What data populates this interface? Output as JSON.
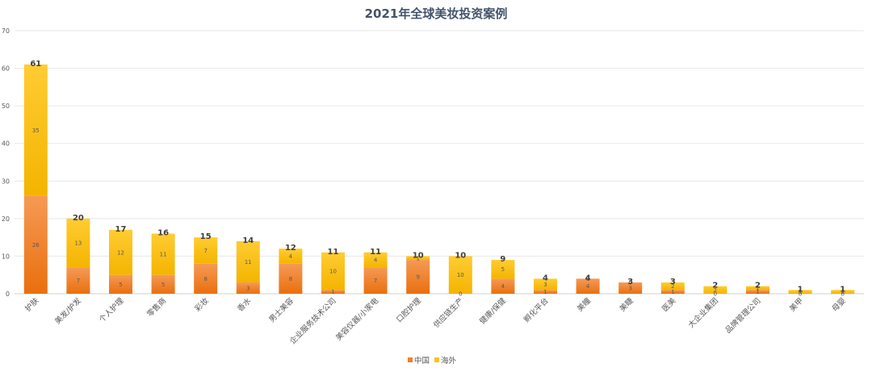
{
  "chart_data": {
    "type": "bar",
    "stacked": true,
    "title": "2021年全球美妆投资案例",
    "xlabel": "",
    "ylabel": "",
    "ylim": [
      0,
      70
    ],
    "yticks": [
      0,
      10,
      20,
      30,
      40,
      50,
      60,
      70
    ],
    "grid": true,
    "legend": "bottom",
    "categories": [
      "护肤",
      "美发/护发",
      "个人护理",
      "零售商",
      "彩妆",
      "香水",
      "男士美容",
      "企业服务技术公司",
      "美容仪器/小家电",
      "口腔护理",
      "供应链生产",
      "健康/保健",
      "孵化平台",
      "美瞳",
      "美睫",
      "医美",
      "大企业集团",
      "品牌管理公司",
      "美甲",
      "母婴"
    ],
    "series": [
      {
        "name": "中国",
        "color": "#f07f2a",
        "values": [
          26,
          7,
          5,
          5,
          8,
          3,
          8,
          1,
          7,
          9,
          0,
          4,
          1,
          4,
          3,
          1,
          0,
          1,
          0,
          0
        ]
      },
      {
        "name": "海外",
        "color": "#fcc21a",
        "values": [
          35,
          13,
          12,
          11,
          7,
          11,
          4,
          10,
          4,
          1,
          10,
          5,
          3,
          0,
          0,
          2,
          2,
          1,
          1,
          1
        ]
      }
    ],
    "totals": [
      61,
      20,
      17,
      16,
      15,
      14,
      12,
      11,
      11,
      10,
      10,
      9,
      4,
      4,
      3,
      3,
      2,
      2,
      1,
      1
    ]
  }
}
